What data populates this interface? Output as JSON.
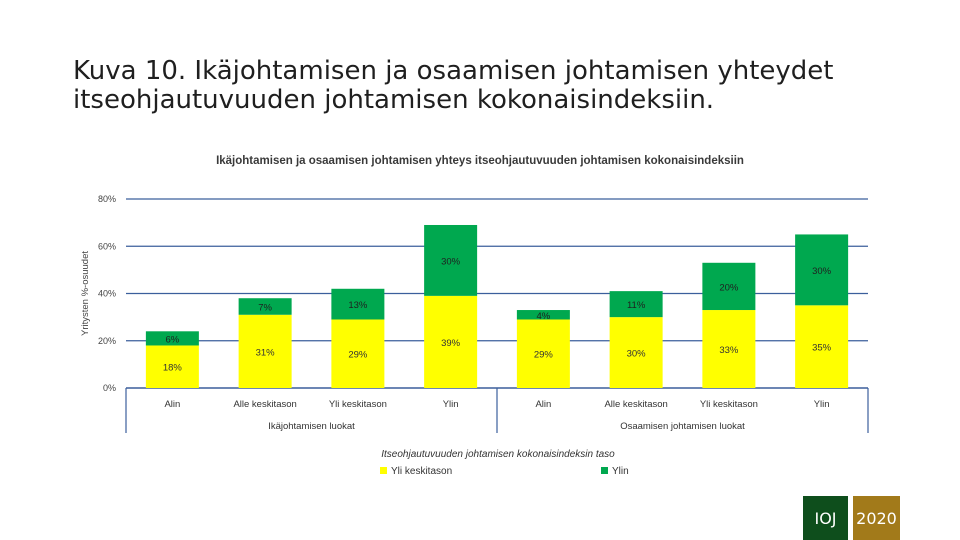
{
  "slide": {
    "title_line1": "Kuva 10. Ikäjohtamisen ja osaamisen johtamisen yhteydet",
    "title_line2": "itseohjautuvuuden johtamisen kokonaisindeksiin."
  },
  "footer": {
    "org_label": "IOJ",
    "year_label": "2020",
    "org_color": "#0e4e1c",
    "year_color": "#a27a1a"
  },
  "chart_data": {
    "type": "bar",
    "stacked": true,
    "title": "Ikäjohtamisen ja osaamisen johtamisen yhteys itseohjautuvuuden johtamisen kokonaisindeksiin",
    "ylabel": "Yritysten %-osuudet",
    "ylim": [
      0,
      80
    ],
    "yticks": [
      0,
      20,
      40,
      60,
      80
    ],
    "ytick_labels": [
      "0%",
      "20%",
      "40%",
      "60%",
      "80%"
    ],
    "grid": true,
    "categories": [
      "Alin",
      "Alle keskitason",
      "Yli keskitason",
      "Ylin",
      "Alin",
      "Alle keskitason",
      "Yli keskitason",
      "Ylin"
    ],
    "groups": [
      {
        "label": "Ikäjohtamisen luokat",
        "count": 4
      },
      {
        "label": "Osaamisen johtamisen luokat",
        "count": 4
      }
    ],
    "series": [
      {
        "name": "Yli keskitason",
        "color": "#ffff00",
        "values": [
          18,
          31,
          29,
          39,
          29,
          30,
          33,
          35
        ],
        "labels": [
          "18%",
          "31%",
          "29%",
          "39%",
          "29%",
          "30%",
          "33%",
          "35%"
        ]
      },
      {
        "name": "Ylin",
        "color": "#00a84f",
        "values": [
          6,
          7,
          13,
          30,
          4,
          11,
          20,
          30
        ],
        "labels": [
          "6%",
          "7%",
          "13%",
          "30%",
          "4%",
          "11%",
          "20%",
          "30%"
        ]
      }
    ],
    "legend_title": "Itseohjautuvuuden johtamisen kokonaisindeksin taso",
    "legend_position": "bottom"
  }
}
